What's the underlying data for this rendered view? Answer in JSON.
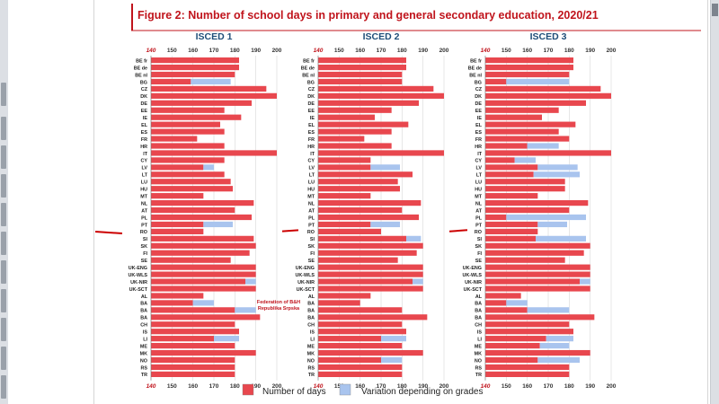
{
  "title": "Figure 2: Number of school days in primary and general secondary education, 2020/21",
  "colors": {
    "days": "#e8474e",
    "variation": "#a9c4ee",
    "title": "#c0141c",
    "panel_title": "#1f4e79",
    "axis_min_label": "#c0141c"
  },
  "legend": {
    "days_label": "Number of days",
    "variation_label": "Variation depending on grades"
  },
  "annotation": {
    "line1": "Federation of B&H",
    "line2": "Republika Srpska"
  },
  "chart_data": {
    "type": "bar",
    "title": "Figure 2: Number of school days in primary and general secondary education, 2020/21",
    "xlim": [
      140,
      200
    ],
    "ticks": [
      "140",
      "150",
      "160",
      "170",
      "180",
      "190",
      "200"
    ],
    "categories": [
      "BE fr",
      "BE de",
      "BE nl",
      "BG",
      "CZ",
      "DK",
      "DE",
      "EE",
      "IE",
      "EL",
      "ES",
      "FR",
      "HR",
      "IT",
      "CY",
      "LV",
      "LT",
      "LU",
      "HU",
      "MT",
      "NL",
      "AT",
      "PL",
      "PT",
      "RO",
      "SI",
      "SK",
      "FI",
      "SE",
      "UK-ENG",
      "UK-WLS",
      "UK-NIR",
      "UK-SCT",
      "AL",
      "BA",
      "BA",
      "BA",
      "CH",
      "IS",
      "LI",
      "ME",
      "MK",
      "NO",
      "RS",
      "TR"
    ],
    "panels": [
      {
        "name": "ISCED 1",
        "days": [
          182,
          182,
          180,
          159,
          195,
          200,
          188,
          175,
          183,
          173,
          175,
          162,
          175,
          200,
          175,
          165,
          175,
          178,
          179,
          165,
          189,
          180,
          188,
          165,
          165,
          189,
          190,
          187,
          178,
          190,
          190,
          185,
          190,
          165,
          160,
          180,
          192,
          180,
          182,
          170,
          180,
          190,
          180,
          180,
          180
        ],
        "variation": [
          0,
          0,
          0,
          19,
          0,
          0,
          0,
          0,
          0,
          0,
          0,
          0,
          0,
          0,
          0,
          5,
          0,
          0,
          0,
          0,
          0,
          0,
          0,
          14,
          0,
          0,
          0,
          0,
          0,
          0,
          0,
          5,
          0,
          0,
          10,
          10,
          0,
          0,
          0,
          12,
          0,
          0,
          0,
          0,
          0
        ]
      },
      {
        "name": "ISCED 2",
        "days": [
          182,
          182,
          180,
          180,
          195,
          200,
          188,
          175,
          167,
          183,
          175,
          162,
          175,
          200,
          165,
          165,
          185,
          178,
          179,
          165,
          189,
          180,
          188,
          165,
          170,
          182,
          190,
          187,
          178,
          190,
          190,
          185,
          190,
          165,
          160,
          180,
          192,
          180,
          182,
          170,
          180,
          190,
          170,
          180,
          180
        ],
        "variation": [
          0,
          0,
          0,
          0,
          0,
          0,
          0,
          0,
          0,
          0,
          0,
          0,
          0,
          0,
          0,
          14,
          0,
          0,
          0,
          0,
          0,
          0,
          0,
          14,
          0,
          7,
          0,
          0,
          0,
          0,
          0,
          5,
          0,
          0,
          0,
          0,
          0,
          0,
          0,
          12,
          0,
          0,
          10,
          0,
          0
        ],
        "variation_note": ""
      },
      {
        "name": "ISCED 3",
        "days": [
          182,
          182,
          180,
          150,
          195,
          200,
          188,
          175,
          167,
          183,
          175,
          180,
          160,
          200,
          154,
          165,
          163,
          178,
          178,
          165,
          189,
          180,
          150,
          165,
          165,
          164,
          190,
          187,
          178,
          190,
          190,
          185,
          190,
          157,
          150,
          160,
          192,
          180,
          182,
          169,
          166,
          190,
          165,
          180,
          180
        ],
        "variation": [
          0,
          0,
          0,
          30,
          0,
          0,
          0,
          0,
          0,
          0,
          0,
          0,
          15,
          0,
          10,
          19,
          22,
          0,
          0,
          0,
          0,
          0,
          38,
          14,
          0,
          24,
          0,
          0,
          0,
          0,
          0,
          5,
          0,
          0,
          10,
          20,
          0,
          0,
          0,
          13,
          14,
          0,
          20,
          0,
          0
        ]
      }
    ],
    "series": [
      {
        "name": "Number of days"
      },
      {
        "name": "Variation depending on grades"
      }
    ]
  }
}
